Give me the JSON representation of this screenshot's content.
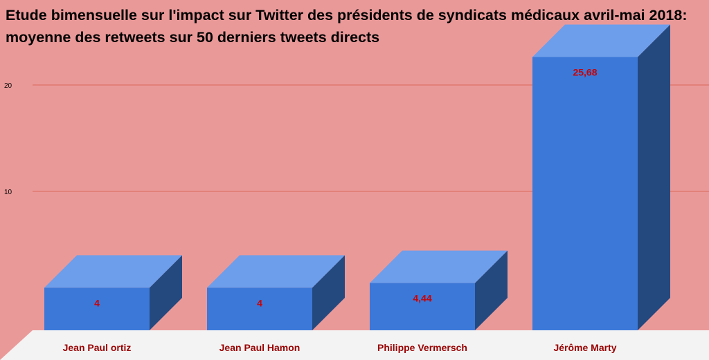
{
  "chart_data": {
    "type": "bar",
    "title": "Etude bimensuelle sur l'impact sur Twitter des présidents de syndicats médicaux avril-mai 2018: moyenne des retweets sur 50 derniers tweets directs",
    "categories": [
      "Jean Paul ortiz",
      "Jean Paul Hamon",
      "Philippe Vermersch",
      "Jérôme Marty"
    ],
    "values": [
      4,
      4,
      4.44,
      25.68
    ],
    "data_labels": [
      "4",
      "4",
      "4,44",
      "25,68"
    ],
    "yticks": [
      10,
      20
    ],
    "ylim": [
      0,
      30
    ],
    "grid": true,
    "legend": "none",
    "style": "3d",
    "colors": {
      "background": "#ea9999",
      "bar_front": "#3c78d8",
      "bar_top": "#6d9eeb",
      "bar_side": "#24497f",
      "floor": "#f3f3f3",
      "gridline": "#cc4125",
      "data_label": "#cc0000",
      "category_label": "#990000"
    }
  }
}
